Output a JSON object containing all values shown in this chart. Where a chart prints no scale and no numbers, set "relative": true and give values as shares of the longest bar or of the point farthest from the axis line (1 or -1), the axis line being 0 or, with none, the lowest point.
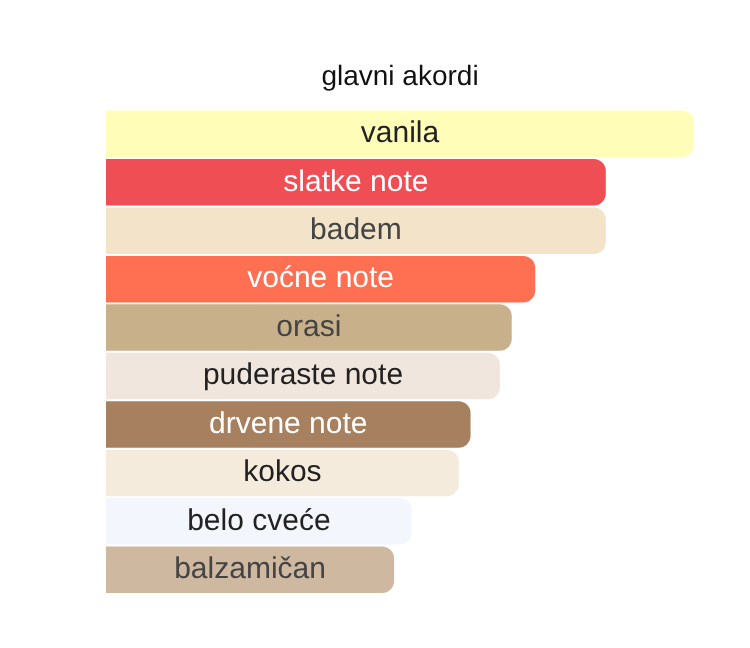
{
  "chart_data": {
    "type": "bar",
    "orientation": "horizontal",
    "relative": true,
    "title": "glavni akordi",
    "categories": [
      "vanila",
      "slatke note",
      "badem",
      "voćne note",
      "orasi",
      "puderaste note",
      "drvene note",
      "kokos",
      "belo cveće",
      "balzamičan"
    ],
    "values": [
      1,
      0.85,
      0.85,
      0.73,
      0.69,
      0.67,
      0.62,
      0.6,
      0.52,
      0.49
    ],
    "colors": [
      "#fffdb8",
      "#ef4e55",
      "#f2e3c9",
      "#ff7052",
      "#c8b08a",
      "#f1e6dd",
      "#a7805f",
      "#f4ebdc",
      "#f3f6fc",
      "#cfb8a0"
    ],
    "legend": false
  }
}
